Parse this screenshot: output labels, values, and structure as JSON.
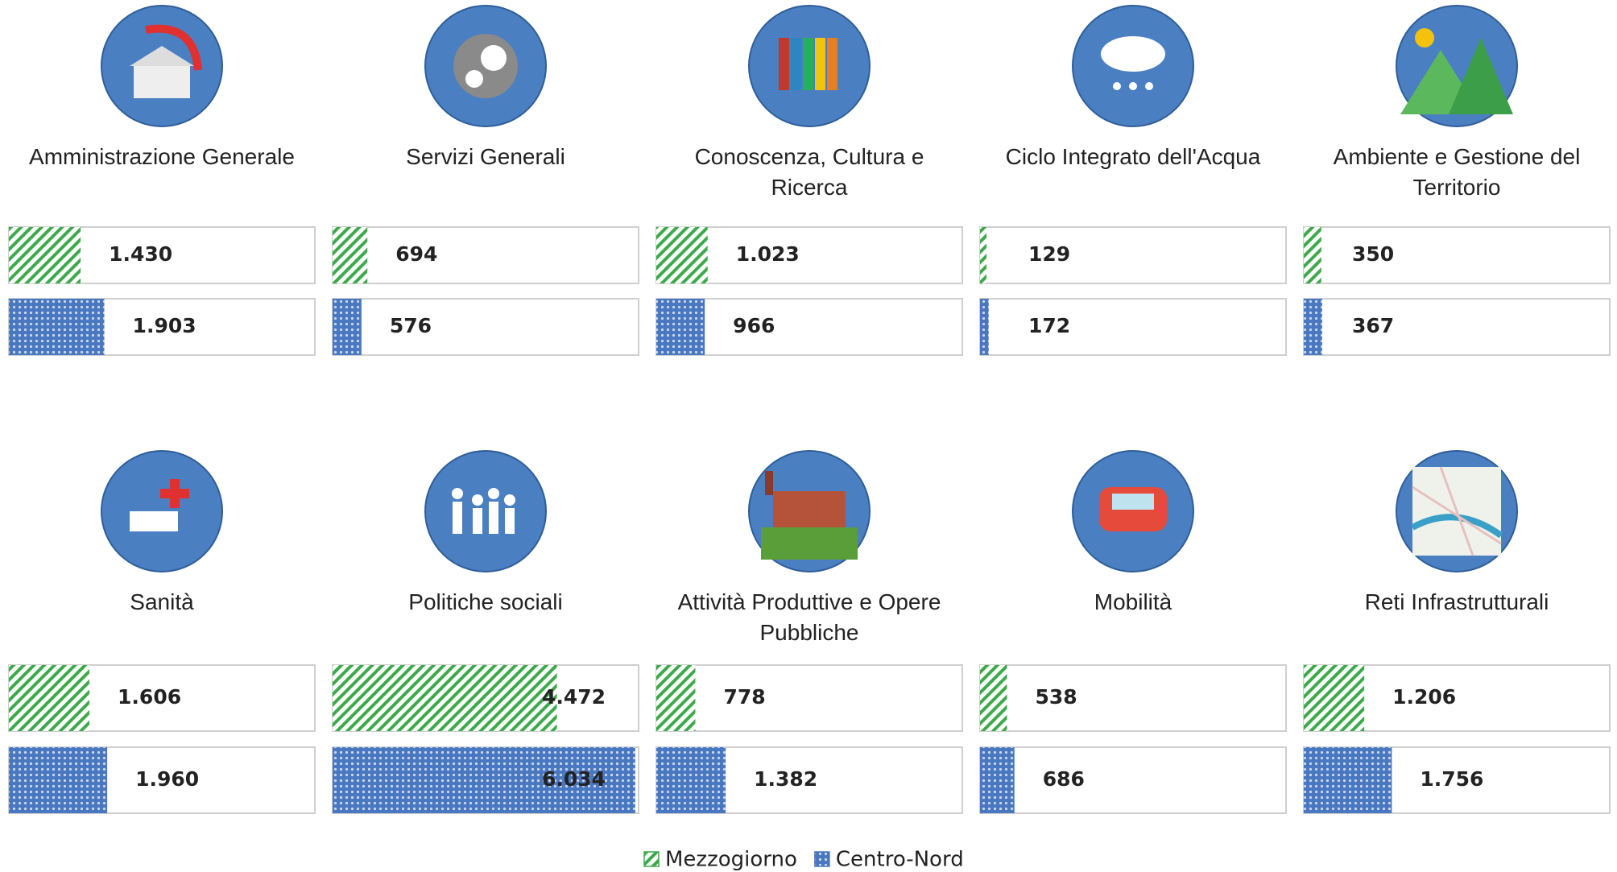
{
  "chart_data": {
    "type": "bar",
    "categories": [
      "Amministrazione Generale",
      "Servizi Generali",
      "Conoscenza, Cultura e Ricerca",
      "Ciclo Integrato dell'Acqua",
      "Ambiente e Gestione del Territorio",
      "Sanità",
      "Politiche sociali",
      "Attività Produttive e Opere Pubbliche",
      "Mobilità",
      "Reti Infrastrutturali"
    ],
    "xlim": [
      0,
      6100
    ],
    "series": [
      {
        "name": "Mezzogiorno",
        "color": "#3daa4a",
        "values": [
          1430,
          694,
          1023,
          129,
          350,
          1606,
          4472,
          778,
          538,
          1206
        ],
        "value_labels": [
          "1.430",
          "694",
          "1.023",
          "129",
          "350",
          "1.606",
          "4.472",
          "778",
          "538",
          "1.206"
        ]
      },
      {
        "name": "Centro-Nord",
        "color": "#4a78c0",
        "values": [
          1903,
          576,
          966,
          172,
          367,
          1960,
          6034,
          1382,
          686,
          1756
        ],
        "value_labels": [
          "1.903",
          "576",
          "966",
          "172",
          "367",
          "1.960",
          "6.034",
          "1.382",
          "686",
          "1.756"
        ]
      }
    ]
  }
}
